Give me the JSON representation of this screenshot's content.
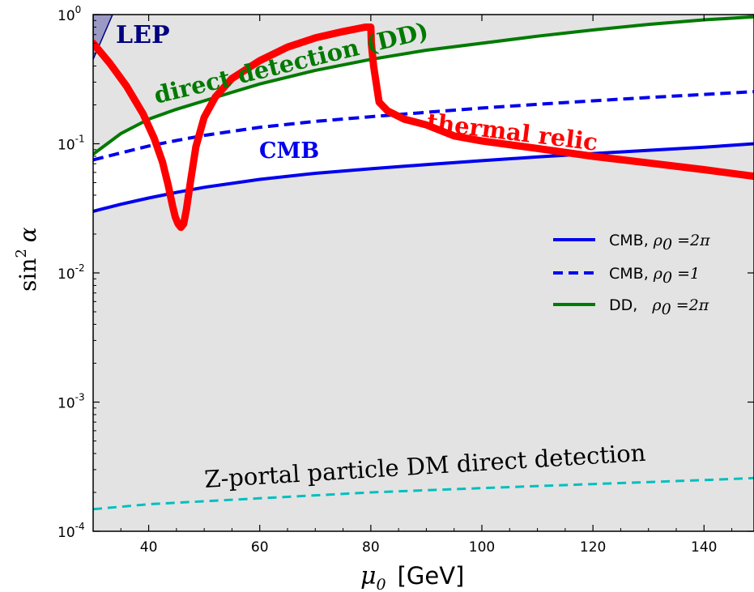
{
  "chart_data": {
    "type": "line",
    "xlabel": "[GeV]",
    "xlabel_symbol": "μ",
    "xlabel_sub": "0",
    "ylabel_main": "sin",
    "ylabel_sup": "2",
    "ylabel_alpha": "α",
    "xlim": [
      30,
      149
    ],
    "ylim": [
      0.0001,
      1
    ],
    "yscale": "log",
    "grid": false,
    "x_ticks": [
      40,
      60,
      80,
      100,
      120,
      140
    ],
    "y_ticks": [
      {
        "value": 1,
        "base": "10",
        "exp": "0"
      },
      {
        "value": 0.1,
        "base": "10",
        "exp": "-1"
      },
      {
        "value": 0.01,
        "base": "10",
        "exp": "-2"
      },
      {
        "value": 0.001,
        "base": "10",
        "exp": "-3"
      },
      {
        "value": 0.0001,
        "base": "10",
        "exp": "-4"
      }
    ],
    "colors": {
      "excluded_fill": "#e3e3e3",
      "lep_fill": "#9a9ac4",
      "lep_edge": "#000080",
      "cmb": "#0000ee",
      "dd": "#007a00",
      "thermal": "#ff0000",
      "zportal": "#00bfbf"
    },
    "series": [
      {
        "name": "thermal relic",
        "color": "#ff0000",
        "style": "solid",
        "width": 9,
        "x": [
          30,
          33,
          36,
          39,
          41,
          42.5,
          43.5,
          44.3,
          44.8,
          45.3,
          45.8,
          46.3,
          46.8,
          47.5,
          48.5,
          50,
          52,
          55,
          60,
          65,
          70,
          75,
          79,
          80,
          80.1,
          80.5,
          81.5,
          83,
          86,
          90,
          95,
          100,
          110,
          120,
          130,
          140,
          149
        ],
        "y": [
          0.6,
          0.42,
          0.28,
          0.17,
          0.11,
          0.072,
          0.048,
          0.033,
          0.027,
          0.024,
          0.0225,
          0.024,
          0.031,
          0.05,
          0.095,
          0.16,
          0.23,
          0.32,
          0.44,
          0.56,
          0.66,
          0.74,
          0.8,
          0.8,
          0.6,
          0.4,
          0.21,
          0.18,
          0.155,
          0.14,
          0.115,
          0.105,
          0.092,
          0.08,
          0.071,
          0.063,
          0.056
        ]
      },
      {
        "name": "CMB, ρ0=2π",
        "color": "#0000ee",
        "style": "solid",
        "width": 4,
        "x": [
          30,
          35,
          40,
          45,
          50,
          60,
          70,
          80,
          90,
          100,
          110,
          120,
          130,
          140,
          149
        ],
        "y": [
          0.03,
          0.034,
          0.038,
          0.042,
          0.046,
          0.053,
          0.059,
          0.064,
          0.069,
          0.074,
          0.079,
          0.084,
          0.089,
          0.094,
          0.1
        ]
      },
      {
        "name": "CMB, ρ0=1",
        "color": "#0000ee",
        "style": "dashed",
        "width": 4,
        "x": [
          30,
          35,
          40,
          45,
          50,
          60,
          70,
          80,
          90,
          100,
          110,
          120,
          130,
          140,
          149
        ],
        "y": [
          0.075,
          0.085,
          0.096,
          0.106,
          0.116,
          0.134,
          0.149,
          0.162,
          0.175,
          0.189,
          0.202,
          0.215,
          0.228,
          0.241,
          0.253
        ]
      },
      {
        "name": "DD, ρ0=2π",
        "color": "#007a00",
        "style": "solid",
        "width": 4,
        "x": [
          30,
          35,
          40,
          45,
          50,
          55,
          60,
          70,
          80,
          90,
          100,
          110,
          120,
          130,
          140,
          149
        ],
        "y": [
          0.083,
          0.12,
          0.155,
          0.185,
          0.215,
          0.25,
          0.29,
          0.37,
          0.45,
          0.53,
          0.6,
          0.68,
          0.76,
          0.84,
          0.91,
          0.96
        ]
      },
      {
        "name": "Z-portal particle DM direct detection",
        "color": "#00bfbf",
        "style": "dashed",
        "width": 3,
        "x": [
          30,
          40,
          60,
          80,
          100,
          120,
          140,
          149
        ],
        "y": [
          0.000148,
          0.000162,
          0.00018,
          0.0002,
          0.000216,
          0.000232,
          0.000249,
          0.000258
        ]
      }
    ],
    "legend": {
      "placement": "center-right",
      "entries": [
        {
          "label": "CMB, ",
          "math": "ρ",
          "sub": "0",
          "rhs": " =2π",
          "color": "#0000ee",
          "style": "solid"
        },
        {
          "label": "CMB, ",
          "math": "ρ",
          "sub": "0",
          "rhs": " =1",
          "color": "#0000ee",
          "style": "dashed"
        },
        {
          "label": "DD,   ",
          "math": "ρ",
          "sub": "0",
          "rhs": " =2π",
          "color": "#007a00",
          "style": "solid"
        }
      ]
    },
    "annotations": [
      {
        "text": "LEP",
        "color": "#000080"
      },
      {
        "text": "direct detection (DD)",
        "color": "#007a00"
      },
      {
        "text": "CMB",
        "color": "#0000ee"
      },
      {
        "text": "thermal relic",
        "color": "#ff0000"
      },
      {
        "text": "Z-portal particle DM direct detection",
        "color": "#000000"
      }
    ]
  }
}
